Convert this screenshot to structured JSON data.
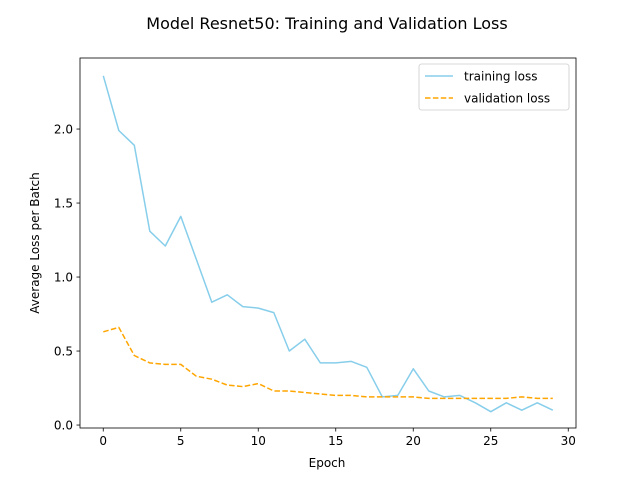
{
  "chart_data": {
    "type": "line",
    "title": "Model Resnet50: Training and Validation Loss",
    "xlabel": "Epoch",
    "ylabel": "Average Loss per Batch",
    "xlim": [
      -1.5,
      30.5
    ],
    "ylim": [
      -0.02,
      2.48
    ],
    "xticks": [
      0,
      5,
      10,
      15,
      20,
      25,
      30
    ],
    "xtick_labels": [
      "0",
      "5",
      "10",
      "15",
      "20",
      "25",
      "30"
    ],
    "yticks": [
      0.0,
      0.5,
      1.0,
      1.5,
      2.0
    ],
    "ytick_labels": [
      "0.0",
      "0.5",
      "1.0",
      "1.5",
      "2.0"
    ],
    "grid": false,
    "legend_position": "top-right",
    "x": [
      0,
      1,
      2,
      3,
      4,
      5,
      6,
      7,
      8,
      9,
      10,
      11,
      12,
      13,
      14,
      15,
      16,
      17,
      18,
      19,
      20,
      21,
      22,
      23,
      24,
      25,
      26,
      27,
      28,
      29
    ],
    "series": [
      {
        "name": "training loss",
        "color": "#87ceeb",
        "style": "solid",
        "values": [
          2.36,
          1.99,
          1.89,
          1.31,
          1.21,
          1.41,
          1.12,
          0.83,
          0.88,
          0.8,
          0.79,
          0.76,
          0.5,
          0.58,
          0.42,
          0.42,
          0.43,
          0.39,
          0.19,
          0.2,
          0.38,
          0.23,
          0.19,
          0.2,
          0.15,
          0.09,
          0.15,
          0.1,
          0.15,
          0.1
        ]
      },
      {
        "name": "validation loss",
        "color": "#ffa500",
        "style": "dashed",
        "values": [
          0.63,
          0.66,
          0.47,
          0.42,
          0.41,
          0.41,
          0.33,
          0.31,
          0.27,
          0.26,
          0.28,
          0.23,
          0.23,
          0.22,
          0.21,
          0.2,
          0.2,
          0.19,
          0.19,
          0.19,
          0.19,
          0.18,
          0.18,
          0.18,
          0.18,
          0.18,
          0.18,
          0.19,
          0.18,
          0.18
        ]
      }
    ]
  }
}
